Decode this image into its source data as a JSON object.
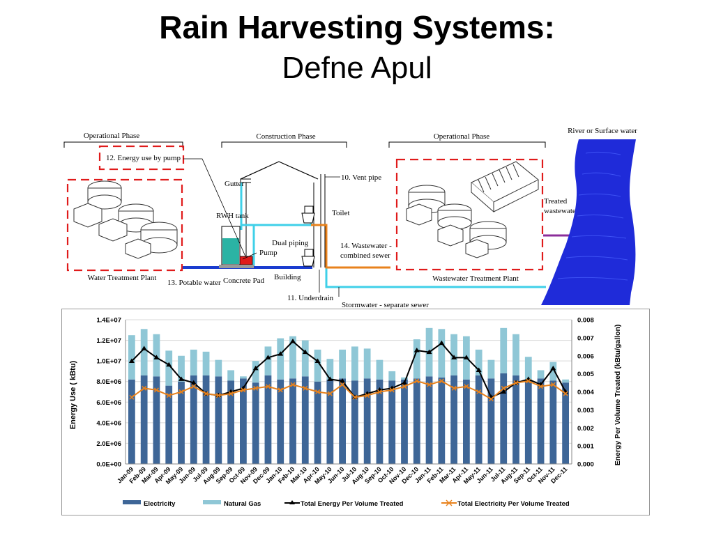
{
  "slide": {
    "title": "Rain Harvesting Systems:",
    "subtitle": "Defne Apul"
  },
  "diagram": {
    "phases": [
      "Operational Phase",
      "Construction Phase",
      "Operational Phase"
    ],
    "river_label": "River or Surface water",
    "labels": {
      "energy_pump": "12. Energy use by pump",
      "vent_pipe": "10. Vent pipe",
      "gutter": "Gutter",
      "rwh_tank": "RWH tank",
      "toilet": "Toilet",
      "dual_piping": "Dual piping",
      "pump": "Pump",
      "wastewater_line1": "14. Wastewater -",
      "wastewater_line2": "combined sewer",
      "treated_line1": "Treated",
      "treated_line2": "wastewater",
      "water_treatment_plant": "Water Treatment Plant",
      "potable_water": "13. Potable water",
      "concrete_pad": "Concrete Pad",
      "building": "Building",
      "underdrain": "11. Underdrain",
      "stormwater": "Stormwater - separate sewer",
      "wastewater_treatment_plant": "Wastewater Treatment Plant"
    },
    "colors": {
      "red_dash": "#e01b1b",
      "cyan": "#3fd0e8",
      "orange": "#e8821c",
      "blue_pipe": "#1a3ccf",
      "purple": "#8b2d9a",
      "river": "#1f2bd9"
    }
  },
  "chart_data": {
    "type": "bar",
    "categories": [
      "Jan-09",
      "Feb-09",
      "Mar-09",
      "Apr-09",
      "May-09",
      "Jun-09",
      "Jul-09",
      "Aug-09",
      "Sep-09",
      "Oct-09",
      "Nov-09",
      "Dec-09",
      "Jan-10",
      "Feb-10",
      "Mar-10",
      "Apr-10",
      "May-10",
      "Jun-10",
      "Jul-10",
      "Aug-10",
      "Sep-10",
      "Oct-10",
      "Nov-10",
      "Dec-10",
      "Jan-11",
      "Feb-11",
      "Mar-11",
      "Apr-11",
      "May-11",
      "Jun-11",
      "Jul-11",
      "Aug-11",
      "Sep-11",
      "Oct-11",
      "Nov-11",
      "Dec-11"
    ],
    "ylabel": "Energy Use ( kBtu)",
    "y2label": "Energy Per Volume Treated (kBtu/gallon)",
    "ylim": [
      0,
      14000000
    ],
    "y2lim": [
      0,
      0.008
    ],
    "yticks": [
      "0.0E+00",
      "2.0E+06",
      "4.0E+06",
      "6.0E+06",
      "8.0E+06",
      "1.0E+07",
      "1.2E+07",
      "1.4E+07"
    ],
    "y2ticks": [
      "0.000",
      "0.001",
      "0.002",
      "0.003",
      "0.004",
      "0.005",
      "0.006",
      "0.007",
      "0.008"
    ],
    "stacked": true,
    "series": [
      {
        "name": "Electricity",
        "kind": "bar",
        "color": "#3e6697",
        "values": [
          8200000,
          8600000,
          8500000,
          7600000,
          8000000,
          8600000,
          8600000,
          8500000,
          8100000,
          8300000,
          7900000,
          8600000,
          8200000,
          8300000,
          8500000,
          8000000,
          8200000,
          8300000,
          8100000,
          8300000,
          8200000,
          8100000,
          8200000,
          8300000,
          8500000,
          8400000,
          8600000,
          8200000,
          8600000,
          8300000,
          8800000,
          8600000,
          8200000,
          8300000,
          8100000,
          7900000
        ]
      },
      {
        "name": "Natural Gas",
        "kind": "bar",
        "color": "#8fc7d6",
        "values": [
          4300000,
          4500000,
          4100000,
          3400000,
          2500000,
          2500000,
          2300000,
          1600000,
          1000000,
          200000,
          2100000,
          2800000,
          4000000,
          4100000,
          3500000,
          3100000,
          2000000,
          2800000,
          3300000,
          2900000,
          1900000,
          900000,
          200000,
          3800000,
          4700000,
          4700000,
          4000000,
          4200000,
          2500000,
          1800000,
          4400000,
          4000000,
          2200000,
          800000,
          1800000,
          300000
        ]
      },
      {
        "name": "Total Energy Per Volume Treated",
        "kind": "line",
        "color": "#000000",
        "values": [
          0.0057,
          0.0064,
          0.0059,
          0.0055,
          0.0047,
          0.0045,
          0.0039,
          0.0038,
          0.004,
          0.0042,
          0.0053,
          0.0059,
          0.0061,
          0.0068,
          0.0062,
          0.0057,
          0.0047,
          0.0046,
          0.0037,
          0.0039,
          0.0041,
          0.0042,
          0.0045,
          0.0063,
          0.0062,
          0.0067,
          0.0059,
          0.0059,
          0.0052,
          0.0037,
          0.004,
          0.0045,
          0.0047,
          0.0044,
          0.0053,
          0.004
        ]
      },
      {
        "name": "Total Electricity Per Volume Treated",
        "kind": "line",
        "color": "#e8821c",
        "values": [
          0.0037,
          0.0042,
          0.0041,
          0.0038,
          0.004,
          0.0043,
          0.0039,
          0.0038,
          0.0039,
          0.0041,
          0.0042,
          0.0043,
          0.0041,
          0.0044,
          0.0042,
          0.004,
          0.0039,
          0.0044,
          0.0037,
          0.0038,
          0.004,
          0.0041,
          0.0043,
          0.0046,
          0.0044,
          0.0046,
          0.0042,
          0.0043,
          0.004,
          0.0036,
          0.0042,
          0.0045,
          0.0046,
          0.0043,
          0.0044,
          0.0039
        ]
      }
    ],
    "legend_position": "bottom"
  }
}
